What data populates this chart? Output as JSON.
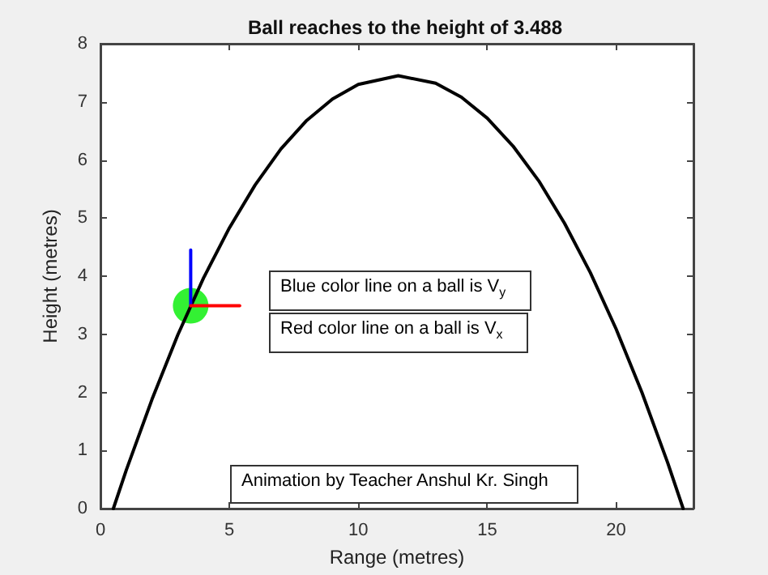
{
  "chart_data": {
    "type": "line",
    "title": "Ball reaches to the height of 3.488",
    "xlabel": "Range (metres)",
    "ylabel": "Height (metres)",
    "xlim": [
      0,
      23
    ],
    "xticks": [
      0,
      5,
      10,
      15,
      20
    ],
    "ylim": [
      0,
      8
    ],
    "yticks": [
      0,
      1,
      2,
      3,
      4,
      5,
      6,
      7,
      8
    ],
    "grid": false,
    "line_style": "solid",
    "series": [
      {
        "marker": "none",
        "color": "#000000",
        "x": [
          0.5,
          1,
          2,
          3,
          4,
          5,
          6,
          7,
          8,
          9,
          10,
          11.55,
          13,
          14,
          15,
          16,
          17,
          18,
          19,
          20,
          21,
          22,
          22.6
        ],
        "values": [
          0,
          0.66,
          1.88,
          2.99,
          3.97,
          4.83,
          5.57,
          6.19,
          6.68,
          7.05,
          7.3,
          7.45,
          7.32,
          7.08,
          6.72,
          6.24,
          5.64,
          4.91,
          4.06,
          3.09,
          2,
          0.79,
          0
        ]
      },
      {
        "type": "line",
        "marker": "none",
        "color": "#0000ff",
        "x": [
          3.5,
          3.5
        ],
        "values": [
          3.49,
          4.45
        ]
      },
      {
        "type": "line",
        "marker": "none",
        "color": "#ff0000",
        "x": [
          3.5,
          5.4
        ],
        "values": [
          3.49,
          3.49
        ]
      },
      {
        "type": "scatter",
        "marker": "circle",
        "color": "#00ee00",
        "x": [
          3.5
        ],
        "values": [
          3.49
        ]
      }
    ],
    "annotations": [
      "Blue color line on a ball is V$_{y}$",
      "Red color line on a ball is V$_{x}$",
      "Animation by Teacher Anshul Kr. Singh"
    ]
  }
}
